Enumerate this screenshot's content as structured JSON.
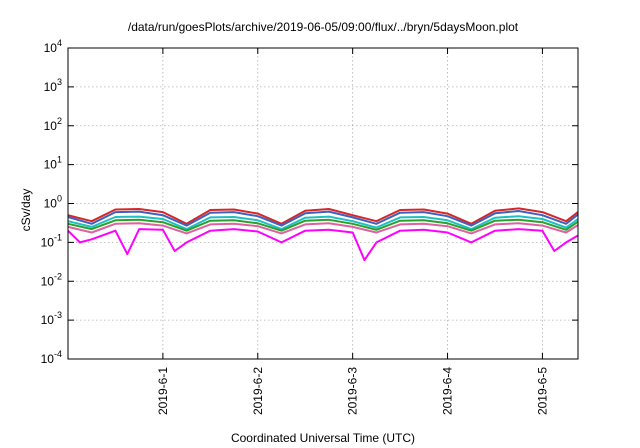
{
  "chart_data": {
    "type": "line",
    "title": "/data/run/goesPlots/archive/2019-06-05/09:00/flux/../bryn/5daysMoon.plot",
    "xlabel": "Coordinated Universal Time (UTC)",
    "ylabel": "cSv/day",
    "yscale": "log",
    "ylim": [
      0.0001,
      10000
    ],
    "xlim": [
      "2019-05-31T00:00",
      "2019-06-05T09:00"
    ],
    "grid": true,
    "legend": "none",
    "y_ticks": [
      {
        "base": "10",
        "exp": "-4"
      },
      {
        "base": "10",
        "exp": "-3"
      },
      {
        "base": "10",
        "exp": "-2"
      },
      {
        "base": "10",
        "exp": "-1"
      },
      {
        "base": "10",
        "exp": "0"
      },
      {
        "base": "10",
        "exp": "1"
      },
      {
        "base": "10",
        "exp": "2"
      },
      {
        "base": "10",
        "exp": "3"
      },
      {
        "base": "10",
        "exp": "4"
      }
    ],
    "x_ticks": [
      "2019-6-1",
      "2019-6-2",
      "2019-6-3",
      "2019-6-4",
      "2019-6-5"
    ],
    "x_tick_positions": [
      "2019-06-01T00:00",
      "2019-06-02T00:00",
      "2019-06-03T00:00",
      "2019-06-04T00:00",
      "2019-06-05T00:00"
    ],
    "series": [
      {
        "color": "#d62728",
        "x": [
          "2019-05-31T00:00",
          "2019-05-31T06:00",
          "2019-05-31T12:00",
          "2019-05-31T18:00",
          "2019-06-01T00:00",
          "2019-06-01T06:00",
          "2019-06-01T12:00",
          "2019-06-01T18:00",
          "2019-06-02T00:00",
          "2019-06-02T06:00",
          "2019-06-02T12:00",
          "2019-06-02T18:00",
          "2019-06-03T00:00",
          "2019-06-03T06:00",
          "2019-06-03T12:00",
          "2019-06-03T18:00",
          "2019-06-04T00:00",
          "2019-06-04T06:00",
          "2019-06-04T12:00",
          "2019-06-04T18:00",
          "2019-06-05T00:00",
          "2019-06-05T06:00",
          "2019-06-05T09:00"
        ],
        "values": [
          0.5,
          0.35,
          0.7,
          0.72,
          0.6,
          0.3,
          0.68,
          0.7,
          0.55,
          0.3,
          0.65,
          0.72,
          0.5,
          0.35,
          0.68,
          0.7,
          0.55,
          0.3,
          0.65,
          0.75,
          0.6,
          0.35,
          0.6
        ]
      },
      {
        "color": "#4060c0",
        "x": [
          "2019-05-31T00:00",
          "2019-05-31T06:00",
          "2019-05-31T12:00",
          "2019-05-31T18:00",
          "2019-06-01T00:00",
          "2019-06-01T06:00",
          "2019-06-01T12:00",
          "2019-06-01T18:00",
          "2019-06-02T00:00",
          "2019-06-02T06:00",
          "2019-06-02T12:00",
          "2019-06-02T18:00",
          "2019-06-03T00:00",
          "2019-06-03T06:00",
          "2019-06-03T12:00",
          "2019-06-03T18:00",
          "2019-06-04T00:00",
          "2019-06-04T06:00",
          "2019-06-04T12:00",
          "2019-06-04T18:00",
          "2019-06-05T00:00",
          "2019-06-05T06:00",
          "2019-06-05T09:00"
        ],
        "values": [
          0.45,
          0.3,
          0.6,
          0.62,
          0.5,
          0.27,
          0.58,
          0.6,
          0.47,
          0.27,
          0.56,
          0.62,
          0.44,
          0.3,
          0.58,
          0.6,
          0.47,
          0.27,
          0.56,
          0.64,
          0.5,
          0.3,
          0.52
        ]
      },
      {
        "color": "#20c0c0",
        "x": [
          "2019-05-31T00:00",
          "2019-05-31T06:00",
          "2019-05-31T12:00",
          "2019-05-31T18:00",
          "2019-06-01T00:00",
          "2019-06-01T06:00",
          "2019-06-01T12:00",
          "2019-06-01T18:00",
          "2019-06-02T00:00",
          "2019-06-02T06:00",
          "2019-06-02T12:00",
          "2019-06-02T18:00",
          "2019-06-03T00:00",
          "2019-06-03T06:00",
          "2019-06-03T12:00",
          "2019-06-03T18:00",
          "2019-06-04T00:00",
          "2019-06-04T06:00",
          "2019-06-04T12:00",
          "2019-06-04T18:00",
          "2019-06-05T00:00",
          "2019-06-05T06:00",
          "2019-06-05T09:00"
        ],
        "values": [
          0.35,
          0.25,
          0.45,
          0.46,
          0.4,
          0.22,
          0.44,
          0.45,
          0.37,
          0.22,
          0.43,
          0.46,
          0.35,
          0.24,
          0.44,
          0.45,
          0.37,
          0.22,
          0.43,
          0.47,
          0.4,
          0.24,
          0.4
        ]
      },
      {
        "color": "#2ca02c",
        "x": [
          "2019-05-31T00:00",
          "2019-05-31T06:00",
          "2019-05-31T12:00",
          "2019-05-31T18:00",
          "2019-06-01T00:00",
          "2019-06-01T06:00",
          "2019-06-01T12:00",
          "2019-06-01T18:00",
          "2019-06-02T00:00",
          "2019-06-02T06:00",
          "2019-06-02T12:00",
          "2019-06-02T18:00",
          "2019-06-03T00:00",
          "2019-06-03T06:00",
          "2019-06-03T12:00",
          "2019-06-03T18:00",
          "2019-06-04T00:00",
          "2019-06-04T06:00",
          "2019-06-04T12:00",
          "2019-06-04T18:00",
          "2019-06-05T00:00",
          "2019-06-05T06:00",
          "2019-06-05T09:00"
        ],
        "values": [
          0.3,
          0.22,
          0.37,
          0.38,
          0.33,
          0.2,
          0.36,
          0.37,
          0.31,
          0.2,
          0.36,
          0.38,
          0.3,
          0.21,
          0.36,
          0.37,
          0.31,
          0.2,
          0.36,
          0.38,
          0.33,
          0.21,
          0.34
        ]
      },
      {
        "color": "#e060a0",
        "x": [
          "2019-05-31T00:00",
          "2019-05-31T06:00",
          "2019-05-31T12:00",
          "2019-05-31T18:00",
          "2019-06-01T00:00",
          "2019-06-01T06:00",
          "2019-06-01T12:00",
          "2019-06-01T18:00",
          "2019-06-02T00:00",
          "2019-06-02T06:00",
          "2019-06-02T12:00",
          "2019-06-02T18:00",
          "2019-06-03T00:00",
          "2019-06-03T06:00",
          "2019-06-03T12:00",
          "2019-06-03T18:00",
          "2019-06-04T00:00",
          "2019-06-04T06:00",
          "2019-06-04T12:00",
          "2019-06-04T18:00",
          "2019-06-05T00:00",
          "2019-06-05T06:00",
          "2019-06-05T09:00"
        ],
        "values": [
          0.25,
          0.18,
          0.3,
          0.31,
          0.27,
          0.17,
          0.29,
          0.3,
          0.26,
          0.17,
          0.29,
          0.31,
          0.25,
          0.18,
          0.29,
          0.3,
          0.26,
          0.17,
          0.29,
          0.31,
          0.27,
          0.18,
          0.28
        ]
      },
      {
        "color": "#ff00ff",
        "x": [
          "2019-05-31T00:00",
          "2019-05-31T03:00",
          "2019-05-31T06:00",
          "2019-05-31T12:00",
          "2019-05-31T15:00",
          "2019-05-31T18:00",
          "2019-06-01T00:00",
          "2019-06-01T03:00",
          "2019-06-01T06:00",
          "2019-06-01T12:00",
          "2019-06-01T18:00",
          "2019-06-02T00:00",
          "2019-06-02T06:00",
          "2019-06-02T12:00",
          "2019-06-02T18:00",
          "2019-06-03T00:00",
          "2019-06-03T03:00",
          "2019-06-03T06:00",
          "2019-06-03T12:00",
          "2019-06-03T18:00",
          "2019-06-04T00:00",
          "2019-06-04T06:00",
          "2019-06-04T12:00",
          "2019-06-04T18:00",
          "2019-06-05T00:00",
          "2019-06-05T03:00",
          "2019-06-05T06:00",
          "2019-06-05T09:00"
        ],
        "values": [
          0.2,
          0.1,
          0.12,
          0.2,
          0.05,
          0.22,
          0.21,
          0.06,
          0.1,
          0.2,
          0.22,
          0.19,
          0.1,
          0.2,
          0.21,
          0.18,
          0.035,
          0.1,
          0.2,
          0.21,
          0.18,
          0.1,
          0.2,
          0.22,
          0.2,
          0.06,
          0.1,
          0.15
        ]
      }
    ]
  }
}
